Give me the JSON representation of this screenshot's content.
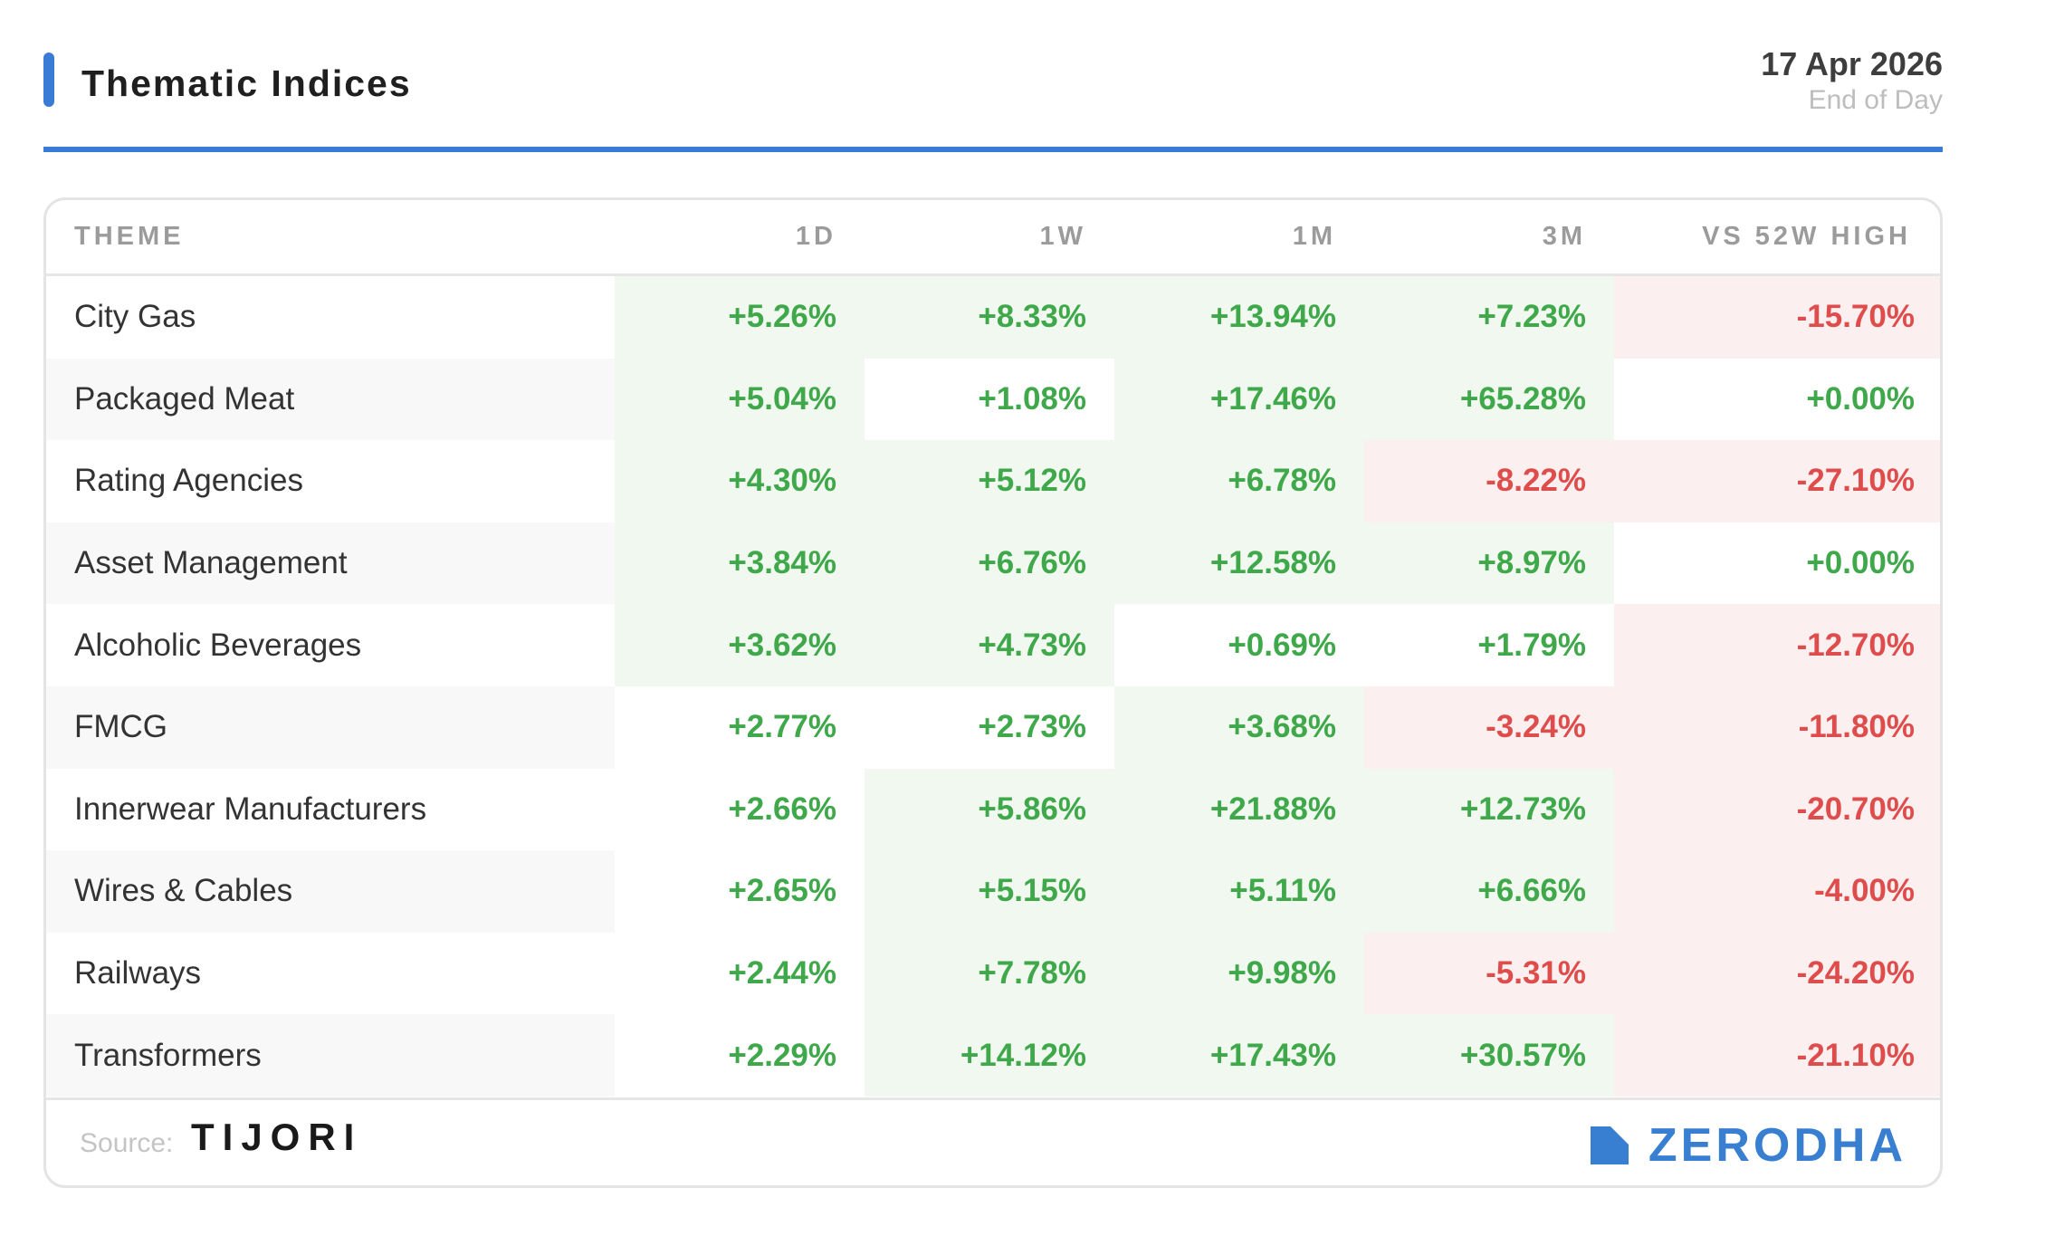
{
  "header": {
    "title": "Thematic Indices",
    "date": "17 Apr 2026",
    "subtitle": "End of Day",
    "accent_color": "#3a7bd5"
  },
  "table": {
    "columns": {
      "theme": "THEME",
      "d1": "1D",
      "w1": "1W",
      "m1": "1M",
      "m3": "3M",
      "high52": "VS 52W HIGH"
    },
    "colors": {
      "positive_text": "#3fa84a",
      "negative_text": "#de4c4c",
      "positive_bg": "#f1f8ef",
      "negative_bg": "#fcefef"
    },
    "rows": [
      {
        "name": "City Gas",
        "d1": "+5.26%",
        "w1": "+8.33%",
        "m1": "+13.94%",
        "m3": "+7.23%",
        "high52": "-15.70%"
      },
      {
        "name": "Packaged Meat",
        "d1": "+5.04%",
        "w1": "+1.08%",
        "m1": "+17.46%",
        "m3": "+65.28%",
        "high52": "+0.00%"
      },
      {
        "name": "Rating Agencies",
        "d1": "+4.30%",
        "w1": "+5.12%",
        "m1": "+6.78%",
        "m3": "-8.22%",
        "high52": "-27.10%"
      },
      {
        "name": "Asset Management",
        "d1": "+3.84%",
        "w1": "+6.76%",
        "m1": "+12.58%",
        "m3": "+8.97%",
        "high52": "+0.00%"
      },
      {
        "name": "Alcoholic Beverages",
        "d1": "+3.62%",
        "w1": "+4.73%",
        "m1": "+0.69%",
        "m3": "+1.79%",
        "high52": "-12.70%"
      },
      {
        "name": "FMCG",
        "d1": "+2.77%",
        "w1": "+2.73%",
        "m1": "+3.68%",
        "m3": "-3.24%",
        "high52": "-11.80%"
      },
      {
        "name": "Innerwear Manufacturers",
        "d1": "+2.66%",
        "w1": "+5.86%",
        "m1": "+21.88%",
        "m3": "+12.73%",
        "high52": "-20.70%"
      },
      {
        "name": "Wires & Cables",
        "d1": "+2.65%",
        "w1": "+5.15%",
        "m1": "+5.11%",
        "m3": "+6.66%",
        "high52": "-4.00%"
      },
      {
        "name": "Railways",
        "d1": "+2.44%",
        "w1": "+7.78%",
        "m1": "+9.98%",
        "m3": "-5.31%",
        "high52": "-24.20%"
      },
      {
        "name": "Transformers",
        "d1": "+2.29%",
        "w1": "+14.12%",
        "m1": "+17.43%",
        "m3": "+30.57%",
        "high52": "-21.10%"
      }
    ],
    "highlight": {
      "d1": [
        "pos",
        "pos",
        "pos",
        "pos",
        "pos",
        "none",
        "none",
        "none",
        "none",
        "none"
      ],
      "w1": [
        "pos",
        "none",
        "pos",
        "pos",
        "pos",
        "none",
        "pos",
        "pos",
        "pos",
        "pos"
      ],
      "m1": [
        "pos",
        "pos",
        "pos",
        "pos",
        "none",
        "pos",
        "pos",
        "pos",
        "pos",
        "pos"
      ],
      "m3": [
        "pos",
        "pos",
        "neg",
        "pos",
        "none",
        "neg",
        "pos",
        "pos",
        "neg",
        "pos"
      ],
      "high52": [
        "neg",
        "none",
        "neg",
        "none",
        "neg",
        "neg",
        "neg",
        "neg",
        "neg",
        "neg"
      ]
    }
  },
  "footer": {
    "source_label": "Source:",
    "source_name": "TIJORI",
    "brand_name": "ZERODHA",
    "brand_icon": "zerodha-logo-icon",
    "brand_color": "#387ed1"
  }
}
